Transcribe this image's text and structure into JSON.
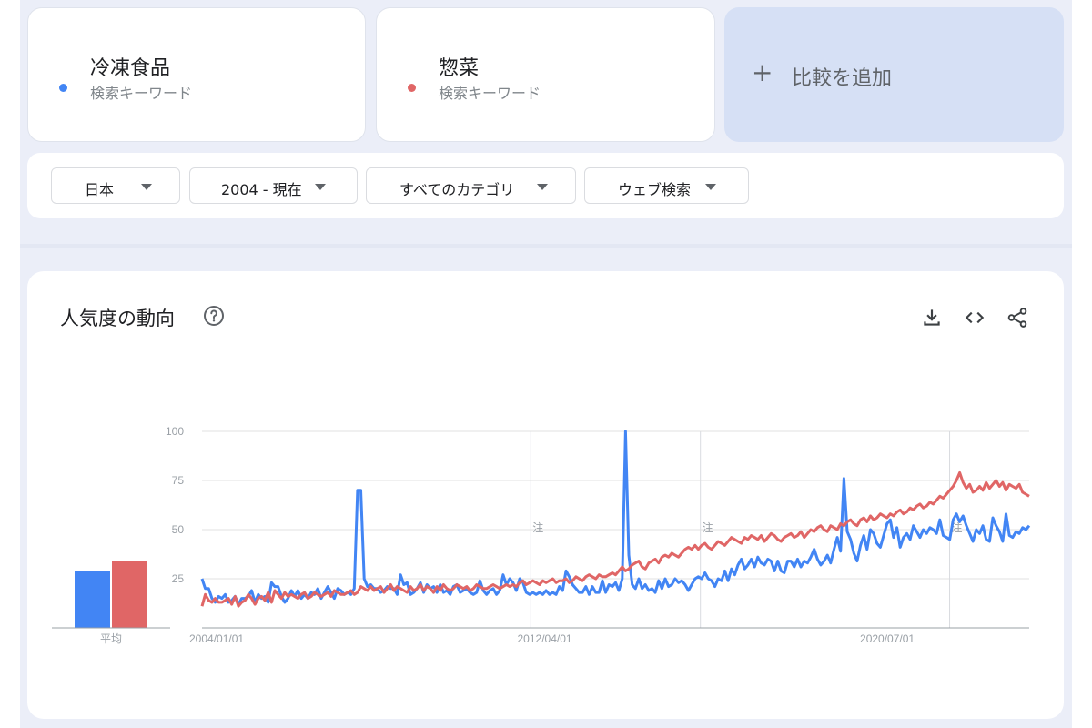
{
  "terms": [
    {
      "name": "冷凍食品",
      "type": "検索キーワード",
      "color": "#4285f4"
    },
    {
      "name": "惣菜",
      "type": "検索キーワード",
      "color": "#e06666"
    }
  ],
  "add_compare": {
    "label": "比較を追加",
    "icon": "plus-icon"
  },
  "filters": {
    "region": "日本",
    "period": "2004 - 現在",
    "category": "すべてのカテゴリ",
    "search_type": "ウェブ検索"
  },
  "panel": {
    "title": "人気度の動向",
    "help_icon": "help-circle-icon",
    "tools": [
      "download-icon",
      "embed-code-icon",
      "share-icon"
    ]
  },
  "chart_data": {
    "type": "line",
    "x_start": "2004/01/01",
    "x_end": "2023/12",
    "x_ticks": [
      "2004/01/01",
      "2012/04/01",
      "2020/07/01"
    ],
    "y_ticks": [
      100,
      75,
      50,
      25
    ],
    "ylim": [
      0,
      100
    ],
    "annotations": [
      {
        "x": "2011/12",
        "label": "注"
      },
      {
        "x": "2016/01",
        "label": "注"
      },
      {
        "x": "2022/01",
        "label": "注"
      }
    ],
    "average": {
      "label": "平均",
      "values": [
        29,
        34
      ]
    },
    "series": [
      {
        "name": "冷凍食品",
        "color": "#4285f4",
        "values": [
          25,
          20,
          20,
          15,
          13,
          16,
          15,
          17,
          13,
          14,
          16,
          12,
          15,
          15,
          16,
          19,
          13,
          17,
          15,
          16,
          13,
          23,
          21,
          21,
          16,
          13,
          15,
          19,
          16,
          19,
          15,
          17,
          15,
          18,
          17,
          20,
          15,
          18,
          21,
          18,
          15,
          20,
          19,
          17,
          18,
          17,
          20,
          70,
          70,
          25,
          21,
          22,
          20,
          20,
          18,
          19,
          21,
          20,
          20,
          17,
          27,
          22,
          23,
          17,
          18,
          20,
          23,
          18,
          22,
          20,
          21,
          18,
          22,
          18,
          19,
          17,
          21,
          22,
          18,
          19,
          20,
          18,
          17,
          18,
          24,
          19,
          17,
          19,
          20,
          17,
          19,
          27,
          22,
          25,
          23,
          19,
          25,
          23,
          18,
          17,
          18,
          17,
          18,
          17,
          19,
          17,
          18,
          17,
          21,
          19,
          29,
          26,
          22,
          20,
          18,
          18,
          21,
          17,
          21,
          18,
          18,
          24,
          18,
          22,
          21,
          23,
          19,
          25,
          100,
          37,
          22,
          20,
          25,
          20,
          22,
          19,
          20,
          18,
          24,
          20,
          25,
          21,
          22,
          25,
          23,
          24,
          22,
          19,
          22,
          25,
          26,
          25,
          28,
          25,
          24,
          21,
          25,
          24,
          29,
          24,
          30,
          27,
          32,
          35,
          30,
          32,
          35,
          31,
          36,
          33,
          32,
          35,
          34,
          29,
          34,
          29,
          28,
          34,
          34,
          31,
          35,
          31,
          34,
          33,
          36,
          40,
          35,
          32,
          34,
          37,
          33,
          40,
          46,
          39,
          76,
          49,
          45,
          38,
          34,
          42,
          47,
          40,
          50,
          48,
          43,
          41,
          47,
          53,
          55,
          46,
          51,
          41,
          46,
          48,
          45,
          52,
          49,
          46,
          50,
          48,
          51,
          50,
          48,
          55,
          47,
          46,
          45,
          55,
          58,
          54,
          57,
          52,
          48,
          44,
          50,
          48,
          52,
          45,
          44,
          56,
          52,
          49,
          44,
          58,
          47,
          46,
          49,
          48,
          51,
          50,
          52
        ]
      },
      {
        "name": "惣菜",
        "color": "#e06666",
        "values": [
          11,
          17,
          14,
          13,
          15,
          13,
          13,
          14,
          15,
          12,
          16,
          11,
          13,
          14,
          17,
          15,
          12,
          15,
          16,
          14,
          18,
          13,
          19,
          17,
          15,
          18,
          16,
          17,
          16,
          15,
          17,
          18,
          15,
          16,
          18,
          17,
          16,
          17,
          18,
          16,
          19,
          18,
          17,
          17,
          18,
          19,
          17,
          18,
          21,
          20,
          19,
          21,
          19,
          20,
          21,
          18,
          20,
          22,
          19,
          21,
          20,
          19,
          18,
          21,
          19,
          20,
          22,
          19,
          21,
          20,
          18,
          21,
          19,
          22,
          20,
          19,
          20,
          22,
          21,
          20,
          21,
          19,
          20,
          22,
          21,
          20,
          20,
          21,
          22,
          21,
          20,
          21,
          22,
          21,
          22,
          21,
          23,
          24,
          22,
          23,
          24,
          23,
          22,
          24,
          23,
          24,
          25,
          23,
          24,
          24,
          25,
          23,
          24,
          26,
          25,
          24,
          26,
          27,
          26,
          25,
          27,
          26,
          26,
          27,
          28,
          27,
          29,
          31,
          29,
          30,
          32,
          33,
          34,
          31,
          30,
          33,
          34,
          35,
          33,
          36,
          37,
          36,
          38,
          37,
          36,
          38,
          40,
          41,
          40,
          42,
          40,
          42,
          43,
          41,
          40,
          42,
          44,
          43,
          42,
          44,
          46,
          45,
          44,
          43,
          46,
          45,
          47,
          46,
          45,
          47,
          44,
          46,
          48,
          47,
          45,
          44,
          46,
          47,
          48,
          46,
          47,
          49,
          46,
          48,
          50,
          49,
          51,
          52,
          50,
          49,
          52,
          51,
          50,
          53,
          52,
          54,
          55,
          53,
          52,
          55,
          56,
          54,
          57,
          55,
          56,
          58,
          57,
          56,
          58,
          57,
          59,
          60,
          58,
          59,
          61,
          60,
          62,
          63,
          61,
          62,
          64,
          63,
          65,
          67,
          66,
          68,
          70,
          72,
          75,
          79,
          74,
          71,
          73,
          69,
          70,
          72,
          70,
          74,
          71,
          73,
          75,
          72,
          74,
          70,
          73,
          72,
          71,
          73,
          69,
          68,
          67
        ]
      }
    ]
  }
}
